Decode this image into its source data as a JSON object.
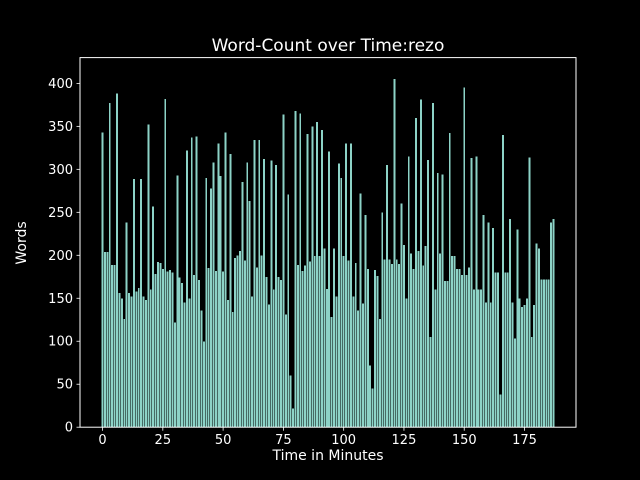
{
  "chart_data": {
    "type": "bar",
    "title": "Word-Count over Time:rezo",
    "xlabel": "Time in Minutes",
    "ylabel": "Words",
    "x_start": 0,
    "x_step": 1,
    "values": [
      343,
      204,
      204,
      377,
      189,
      189,
      388,
      156,
      150,
      126,
      238,
      156,
      152,
      289,
      158,
      162,
      289,
      152,
      148,
      352,
      160,
      257,
      178,
      192,
      191,
      184,
      382,
      181,
      183,
      180,
      122,
      293,
      174,
      168,
      145,
      322,
      150,
      337,
      177,
      338,
      171,
      136,
      100,
      290,
      185,
      278,
      308,
      182,
      330,
      292,
      181,
      343,
      148,
      318,
      134,
      197,
      200,
      205,
      285,
      194,
      308,
      263,
      152,
      334,
      186,
      334,
      200,
      312,
      175,
      143,
      310,
      160,
      305,
      175,
      171,
      364,
      131,
      271,
      60,
      22,
      368,
      189,
      365,
      182,
      188,
      341,
      193,
      350,
      199,
      355,
      199,
      346,
      208,
      161,
      321,
      128,
      208,
      152,
      307,
      290,
      199,
      330,
      194,
      330,
      152,
      191,
      136,
      272,
      144,
      247,
      184,
      72,
      45,
      183,
      176,
      126,
      250,
      195,
      305,
      195,
      190,
      405,
      195,
      190,
      260,
      212,
      150,
      315,
      202,
      184,
      360,
      205,
      381,
      188,
      211,
      311,
      105,
      377,
      160,
      296,
      202,
      294,
      170,
      170,
      342,
      199,
      199,
      184,
      184,
      177,
      395,
      177,
      186,
      313,
      160,
      315,
      160,
      160,
      247,
      145,
      238,
      145,
      232,
      180,
      180,
      38,
      340,
      180,
      180,
      242,
      145,
      103,
      230,
      150,
      140,
      142,
      150,
      314,
      105,
      142,
      214,
      208,
      172,
      172,
      172,
      172,
      238,
      242
    ],
    "xticks": [
      0,
      25,
      50,
      75,
      100,
      125,
      150,
      175
    ],
    "yticks": [
      0,
      50,
      100,
      150,
      200,
      250,
      300,
      350,
      400
    ],
    "xlim": [
      -9.35,
      196.35
    ],
    "ylim": [
      0,
      430
    ],
    "bar_width_units": 0.8,
    "legend": "none",
    "grid": "off",
    "colors": {
      "bar": "#8dd3c7",
      "background": "#000000",
      "foreground": "#ffffff"
    }
  }
}
